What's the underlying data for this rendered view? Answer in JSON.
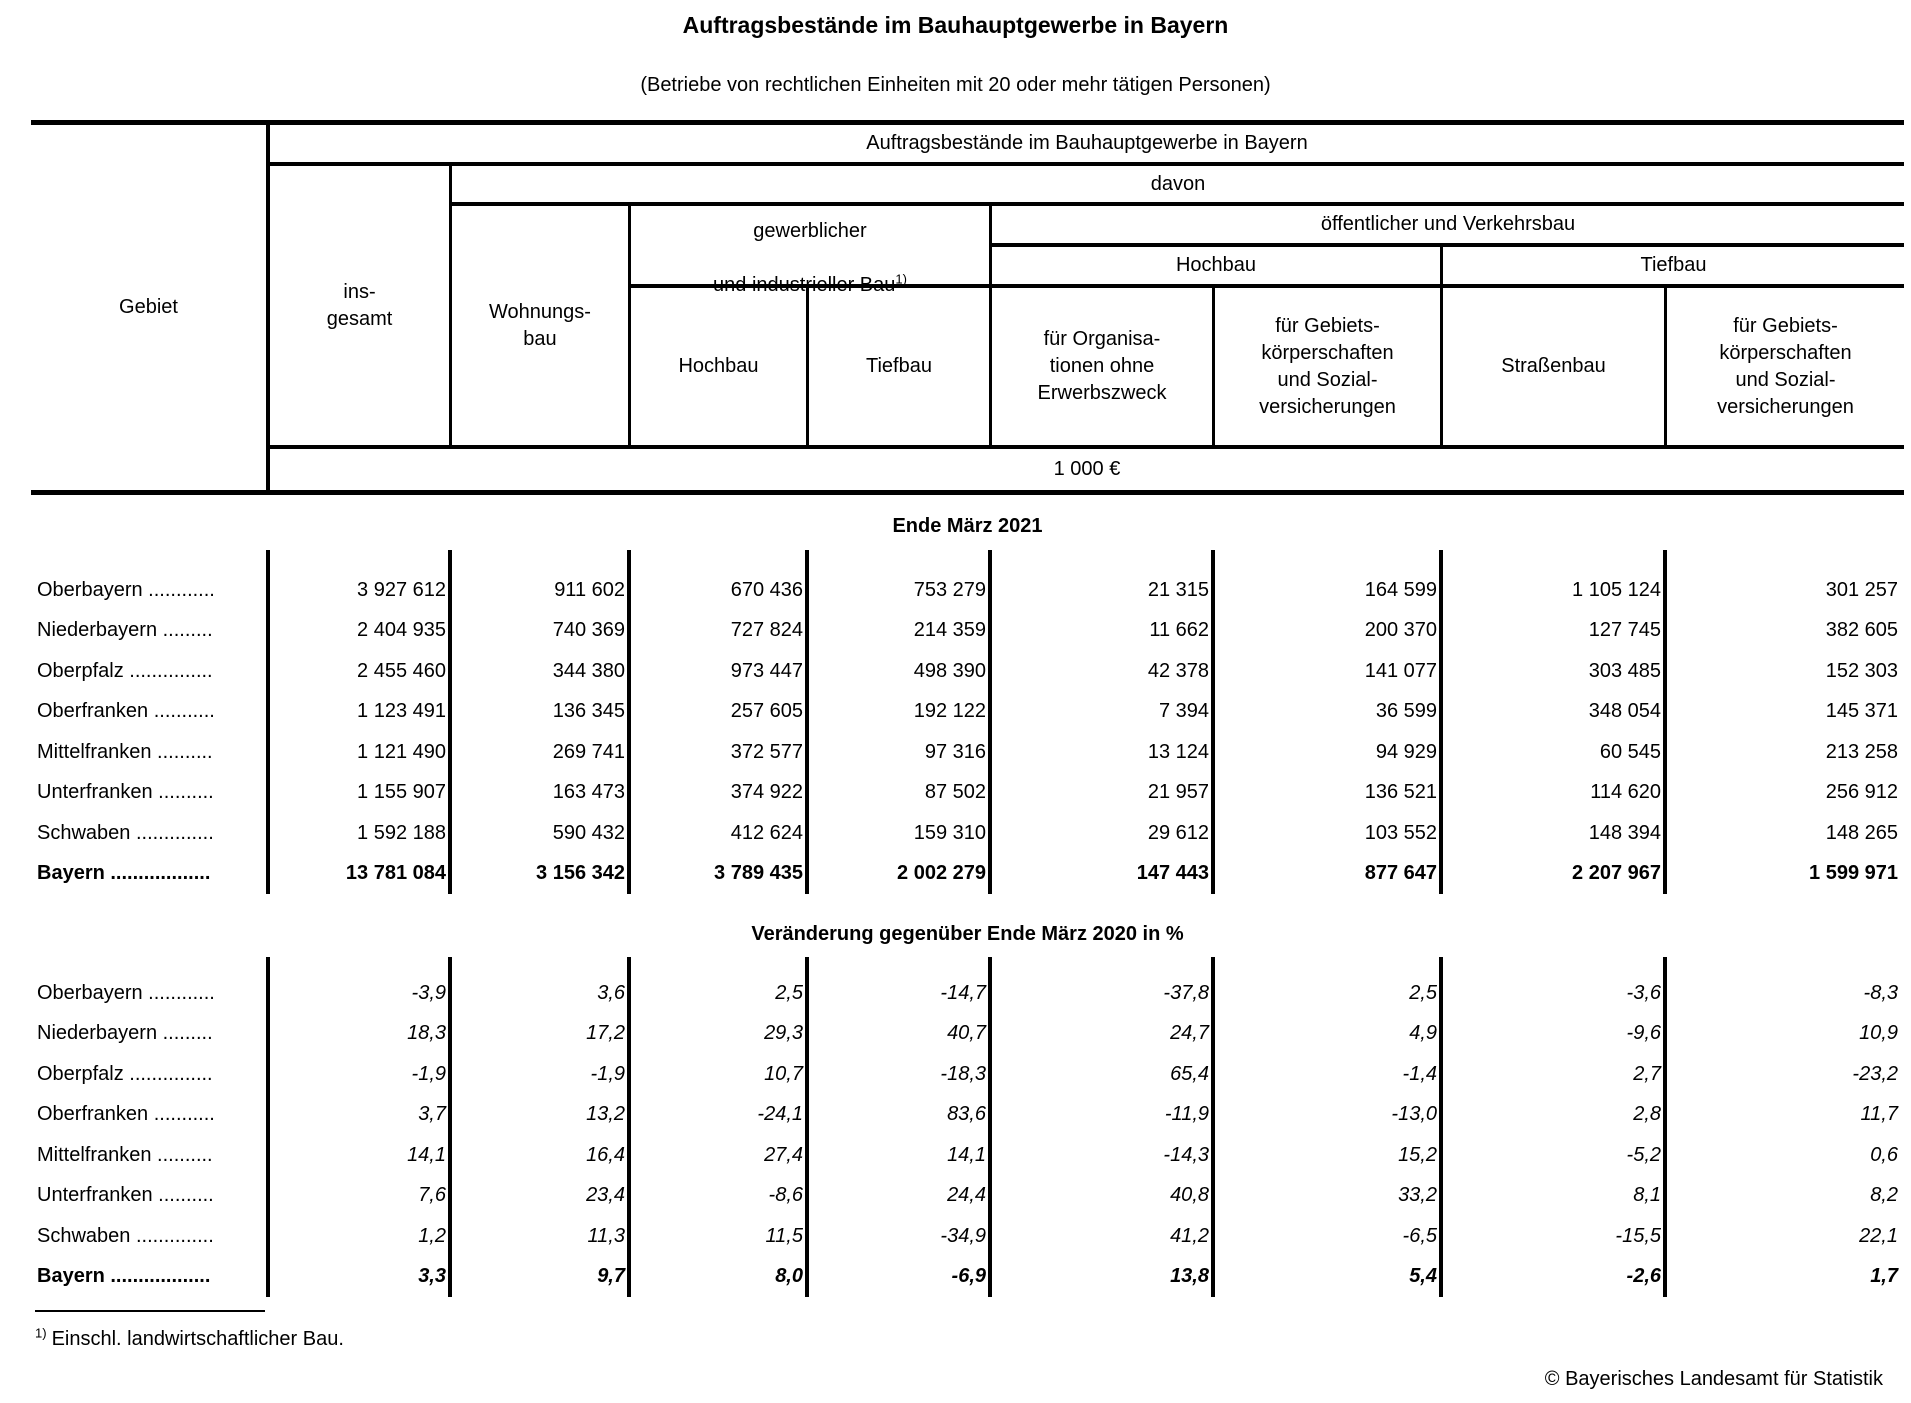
{
  "page": {
    "title": "Auftragsbestände im Bauhauptgewerbe in Bayern",
    "subtitle": "(Betriebe von rechtlichen Einheiten mit 20 oder mehr tätigen Personen)",
    "footnote": {
      "marker": "1)",
      "text": "Einschl. landwirtschaftlicher Bau."
    },
    "copyright": "© Bayerisches Landesamt für Statistik"
  },
  "table": {
    "header": {
      "gebiet": "Gebiet",
      "group_title": "Auftragsbestände im Bauhauptgewerbe in Bayern",
      "davon": "davon",
      "insgesamt": "ins-\ngesamt",
      "wohnungsbau": "Wohnungs-\nbau",
      "gewerblicher_line1": "gewerblicher",
      "gewerblicher_line2": "und industrieller Bau",
      "gewerblicher_marker": "1)",
      "oeffentlicher": "öffentlicher und Verkehrsbau",
      "hochbau_gewerblich": "Hochbau",
      "tiefbau_gewerblich": "Tiefbau",
      "hochbau_oeffentlich": "Hochbau",
      "tiefbau_oeffentlich": "Tiefbau",
      "organisationen": "für Organisa-\ntionen ohne\nErwerbszweck",
      "gebietskoerperschaften_hochbau": "für Gebiets-\nkörperschaften\nund Sozial-\nversicherungen",
      "strassenbau": "Straßenbau",
      "gebietskoerperschaften_tiefbau": "für Gebiets-\nkörperschaften\nund Sozial-\nversicherungen",
      "unit": "1 000 €"
    },
    "sections": [
      {
        "title": "Ende März 2021",
        "rows": [
          {
            "label": "Oberbayern ............",
            "values": [
              "3 927 612",
              "911 602",
              "670 436",
              "753 279",
              "21 315",
              "164 599",
              "1 105 124",
              "301 257"
            ]
          },
          {
            "label": "Niederbayern .........",
            "values": [
              "2 404 935",
              "740 369",
              "727 824",
              "214 359",
              "11 662",
              "200 370",
              "127 745",
              "382 605"
            ]
          },
          {
            "label": "Oberpfalz ...............",
            "values": [
              "2 455 460",
              "344 380",
              "973 447",
              "498 390",
              "42 378",
              "141 077",
              "303 485",
              "152 303"
            ]
          },
          {
            "label": "Oberfranken ...........",
            "values": [
              "1 123 491",
              "136 345",
              "257 605",
              "192 122",
              "7 394",
              "36 599",
              "348 054",
              "145 371"
            ]
          },
          {
            "label": "Mittelfranken ..........",
            "values": [
              "1 121 490",
              "269 741",
              "372 577",
              "97 316",
              "13 124",
              "94 929",
              "60 545",
              "213 258"
            ]
          },
          {
            "label": "Unterfranken ..........",
            "values": [
              "1 155 907",
              "163 473",
              "374 922",
              "87 502",
              "21 957",
              "136 521",
              "114 620",
              "256 912"
            ]
          },
          {
            "label": "Schwaben ..............",
            "values": [
              "1 592 188",
              "590 432",
              "412 624",
              "159 310",
              "29 612",
              "103 552",
              "148 394",
              "148 265"
            ]
          },
          {
            "label": "Bayern ..................",
            "values": [
              "13 781 084",
              "3 156 342",
              "3 789 435",
              "2 002 279",
              "147 443",
              "877 647",
              "2 207 967",
              "1 599 971"
            ]
          }
        ]
      },
      {
        "title": "Veränderung gegenüber Ende März 2020 in %",
        "rows": [
          {
            "label": "Oberbayern ............",
            "values": [
              "-3,9",
              "3,6",
              "2,5",
              "-14,7",
              "-37,8",
              "2,5",
              "-3,6",
              "-8,3"
            ]
          },
          {
            "label": "Niederbayern .........",
            "values": [
              "18,3",
              "17,2",
              "29,3",
              "40,7",
              "24,7",
              "4,9",
              "-9,6",
              "10,9"
            ]
          },
          {
            "label": "Oberpfalz ...............",
            "values": [
              "-1,9",
              "-1,9",
              "10,7",
              "-18,3",
              "65,4",
              "-1,4",
              "2,7",
              "-23,2"
            ]
          },
          {
            "label": "Oberfranken ...........",
            "values": [
              "3,7",
              "13,2",
              "-24,1",
              "83,6",
              "-11,9",
              "-13,0",
              "2,8",
              "11,7"
            ]
          },
          {
            "label": "Mittelfranken ..........",
            "values": [
              "14,1",
              "16,4",
              "27,4",
              "14,1",
              "-14,3",
              "15,2",
              "-5,2",
              "0,6"
            ]
          },
          {
            "label": "Unterfranken ..........",
            "values": [
              "7,6",
              "23,4",
              "-8,6",
              "24,4",
              "40,8",
              "33,2",
              "8,1",
              "8,2"
            ]
          },
          {
            "label": "Schwaben ..............",
            "values": [
              "1,2",
              "11,3",
              "11,5",
              "-34,9",
              "41,2",
              "-6,5",
              "-15,5",
              "22,1"
            ]
          },
          {
            "label": "Bayern ..................",
            "values": [
              "3,3",
              "9,7",
              "8,0",
              "-6,9",
              "13,8",
              "5,4",
              "-2,6",
              "1,7"
            ]
          }
        ]
      }
    ]
  }
}
